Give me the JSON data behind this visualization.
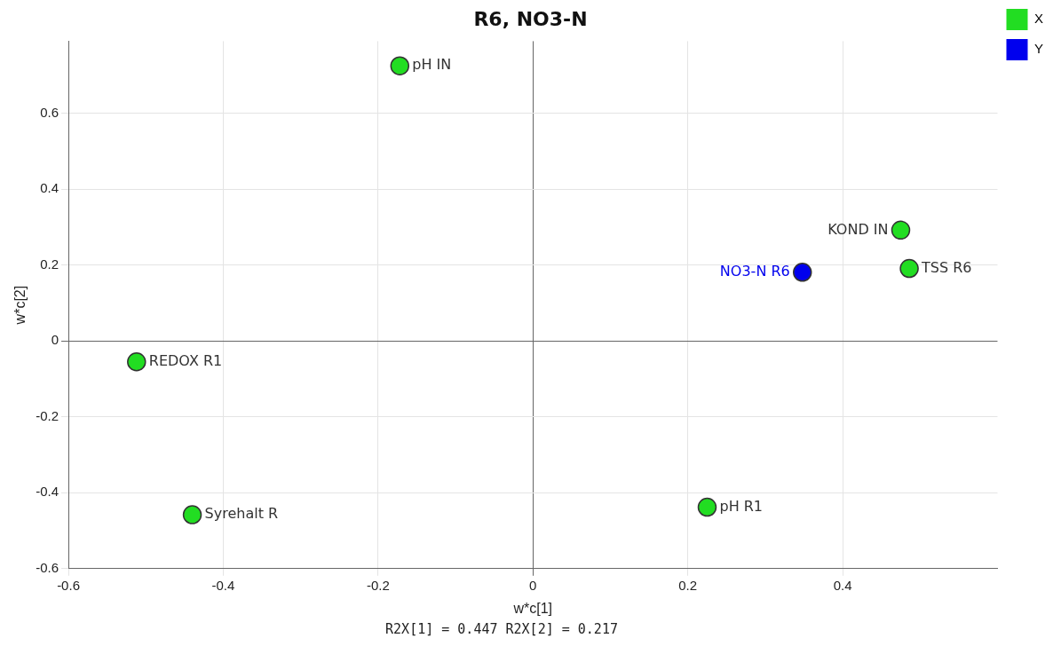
{
  "chart_data": {
    "type": "scatter",
    "title": "R6, NO3-N",
    "xlabel": "w*c[1]",
    "ylabel": "w*c[2]",
    "series": [
      {
        "name": "X",
        "color": "#22dd22",
        "x": [
          -0.172,
          0.475,
          0.486,
          -0.512,
          -0.44,
          0.225
        ],
        "values": [
          0.725,
          0.292,
          0.191,
          -0.055,
          -0.458,
          -0.438
        ]
      },
      {
        "name": "Y",
        "color": "#0000ee",
        "x": [
          0.348
        ],
        "values": [
          0.181
        ]
      }
    ],
    "xlim": [
      -0.6,
      0.6
    ],
    "ylim": [
      -0.6,
      0.79
    ],
    "xticks": [
      -0.6,
      -0.4,
      -0.2,
      0,
      0.2,
      0.4
    ],
    "yticks": [
      -0.6,
      -0.4,
      -0.2,
      0,
      0.2,
      0.4,
      0.6
    ],
    "grid": true,
    "legend": "top right",
    "marker": "circle",
    "annotations": [
      {
        "text": "pH IN",
        "x": -0.172,
        "y": 0.725
      },
      {
        "text": "KOND IN",
        "x": 0.475,
        "y": 0.292
      },
      {
        "text": "TSS R6",
        "x": 0.486,
        "y": 0.191
      },
      {
        "text": "NO3-N R6",
        "x": 0.348,
        "y": 0.181
      },
      {
        "text": "REDOX R1",
        "x": -0.512,
        "y": -0.055
      },
      {
        "text": "Syrehalt R",
        "x": -0.44,
        "y": -0.458
      },
      {
        "text": "pH R1",
        "x": 0.225,
        "y": -0.438
      },
      "R2X[1] = 0.447 R2X[2] = 0.217"
    ]
  }
}
